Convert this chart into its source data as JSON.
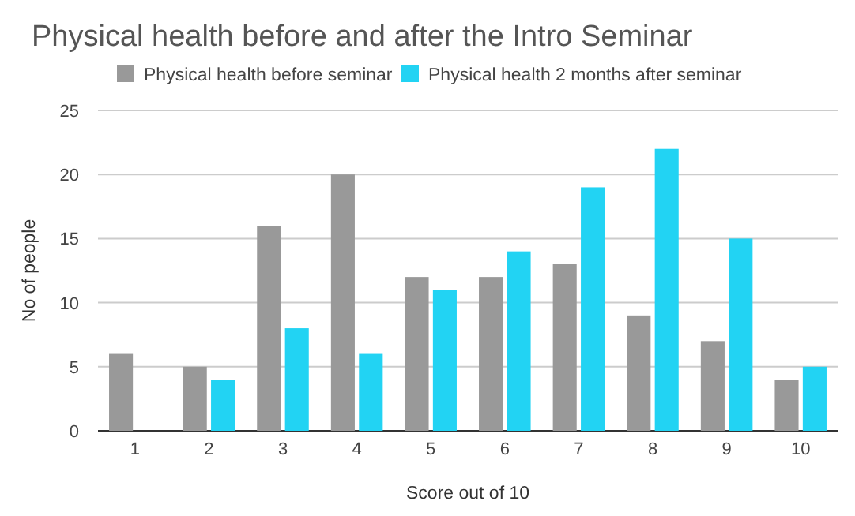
{
  "chart_data": {
    "type": "bar",
    "title": "Physical health before and after the Intro Seminar",
    "xlabel": "Score out of 10",
    "ylabel": "No of people",
    "categories": [
      "1",
      "2",
      "3",
      "4",
      "5",
      "6",
      "7",
      "8",
      "9",
      "10"
    ],
    "series": [
      {
        "name": "Physical health before seminar",
        "color": "#999999",
        "values": [
          6,
          5,
          16,
          20,
          12,
          12,
          13,
          9,
          7,
          4
        ]
      },
      {
        "name": "Physical health 2 months after seminar",
        "color": "#22d3f3",
        "values": [
          0,
          4,
          8,
          6,
          11,
          14,
          19,
          22,
          15,
          5
        ]
      }
    ],
    "ylim": [
      0,
      25
    ],
    "yticks": [
      0,
      5,
      10,
      15,
      20,
      25
    ],
    "grid": "y",
    "legend": "top left"
  }
}
